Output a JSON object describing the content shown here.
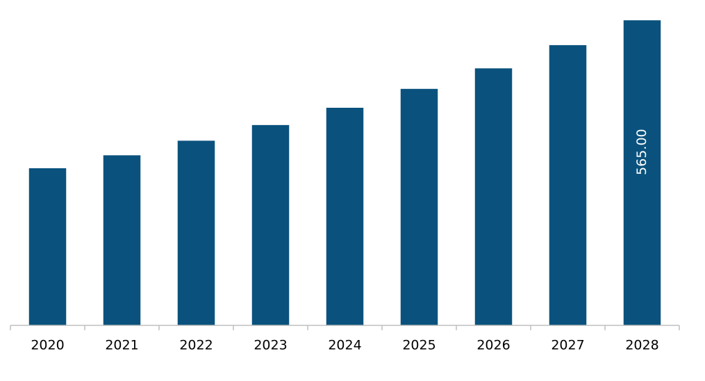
{
  "chart_data": {
    "type": "bar",
    "categories": [
      "2020",
      "2021",
      "2022",
      "2023",
      "2024",
      "2025",
      "2026",
      "2027",
      "2028"
    ],
    "values": [
      291,
      315,
      342,
      371,
      403,
      438,
      476,
      519,
      565
    ],
    "value_labels": [
      null,
      null,
      null,
      null,
      null,
      null,
      null,
      null,
      "565.00"
    ],
    "color": "#0a527d",
    "ylim": [
      0,
      600
    ]
  }
}
